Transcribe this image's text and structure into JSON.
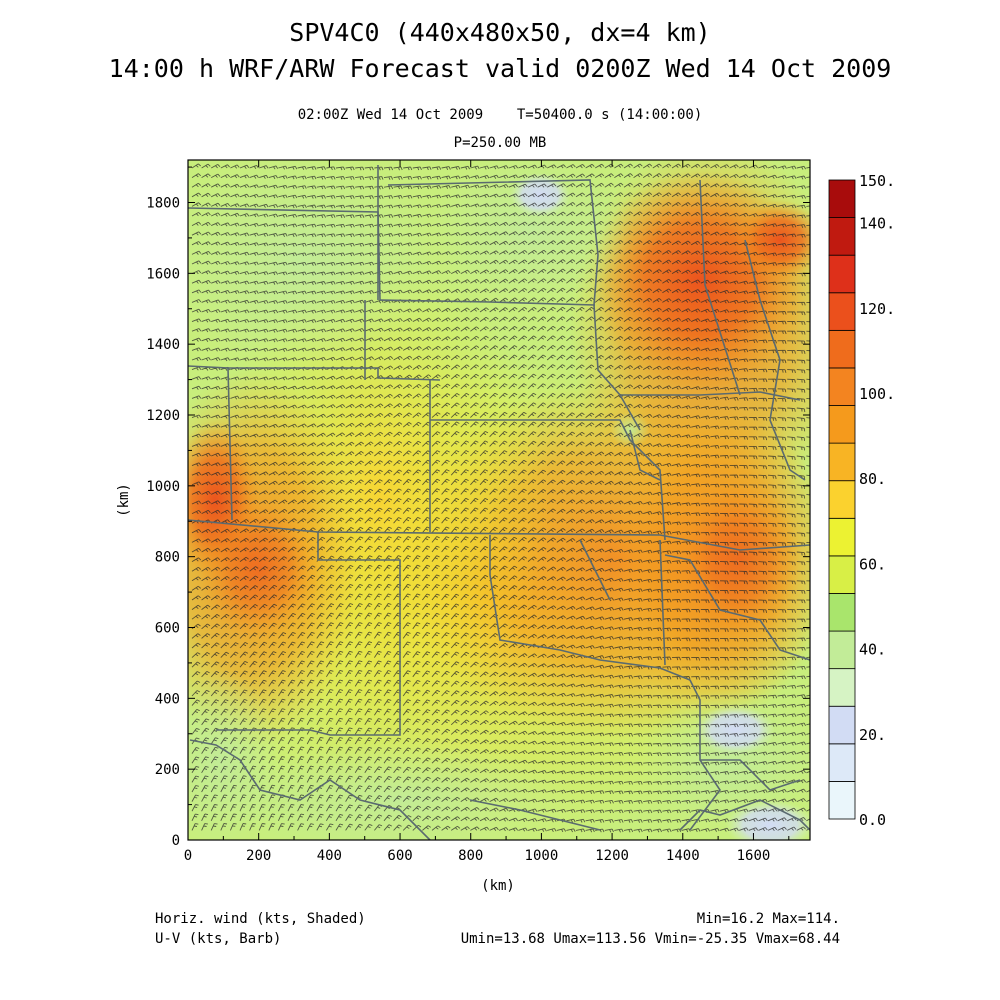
{
  "header": {
    "title_line1": "SPV4C0 (440x480x50, dx=4 km)",
    "title_line2": "14:00 h WRF/ARW Forecast valid 0200Z Wed 14 Oct 2009",
    "subtitle_time": "02:00Z Wed 14 Oct 2009    T=50400.0 s (14:00:00)",
    "subtitle_level": "P=250.00 MB"
  },
  "axes": {
    "x_label": "(km)",
    "y_label": "(km)",
    "x_ticks": [
      "0",
      "200",
      "400",
      "600",
      "800",
      "1000",
      "1200",
      "1400",
      "1600"
    ],
    "y_ticks": [
      "0",
      "200",
      "400",
      "600",
      "800",
      "1000",
      "1200",
      "1400",
      "1600",
      "1800"
    ]
  },
  "colorbar": {
    "labels": [
      "0.0",
      "20.",
      "40.",
      "60.",
      "80.",
      "100.",
      "120.",
      "140.",
      "150."
    ],
    "colors": [
      "#eaf6fb",
      "#dde9f8",
      "#d2dcf4",
      "#d6f3c4",
      "#c2ec98",
      "#a9e56c",
      "#d8ef46",
      "#ecf232",
      "#fbd22e",
      "#f8b424",
      "#f59a1c",
      "#f38420",
      "#ef6c1c",
      "#eb501c",
      "#de301a",
      "#c01a10",
      "#a80c0c"
    ]
  },
  "footer": {
    "field_desc": "Horiz. wind (kts, Shaded)",
    "barb_desc": "U-V (kts, Barb)",
    "min_max": "Min=16.2 Max=114.",
    "uv_stats": "Umin=13.68 Umax=113.56 Vmin=-25.35 Vmax=68.44"
  },
  "chart_data": {
    "type": "heatmap",
    "variable": "Horiz. wind (kts, Shaded)",
    "overlay": "U-V (kts, Barb)",
    "level": "P=250.00 MB",
    "x_range_km": [
      0,
      1760
    ],
    "y_range_km": [
      0,
      1920
    ],
    "color_scale_range": [
      0,
      150
    ],
    "min": 16.2,
    "max": 114,
    "umin": 13.68,
    "umax": 113.56,
    "vmin": -25.35,
    "vmax": 68.44
  }
}
